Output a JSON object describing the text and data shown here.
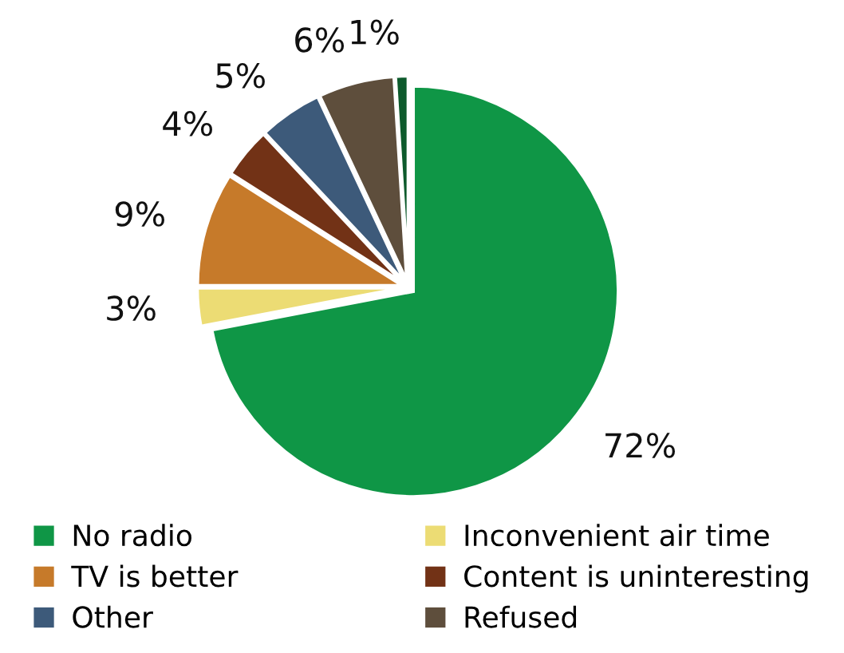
{
  "chart_data": {
    "type": "pie",
    "categories": [
      "No radio",
      "Inconvenient air time",
      "TV is better",
      "Content is uninteresting",
      "Other",
      "Refused",
      null
    ],
    "values": [
      72,
      3,
      9,
      4,
      5,
      6,
      1
    ],
    "colors": [
      "#0f9646",
      "#ecdc74",
      "#c67a2a",
      "#723216",
      "#3d5a7a",
      "#5e4e3c",
      "#0d5a2c"
    ],
    "value_labels": [
      "72%",
      "3%",
      "9%",
      "4%",
      "5%",
      "6%",
      "1%"
    ],
    "legend": "bottom"
  }
}
